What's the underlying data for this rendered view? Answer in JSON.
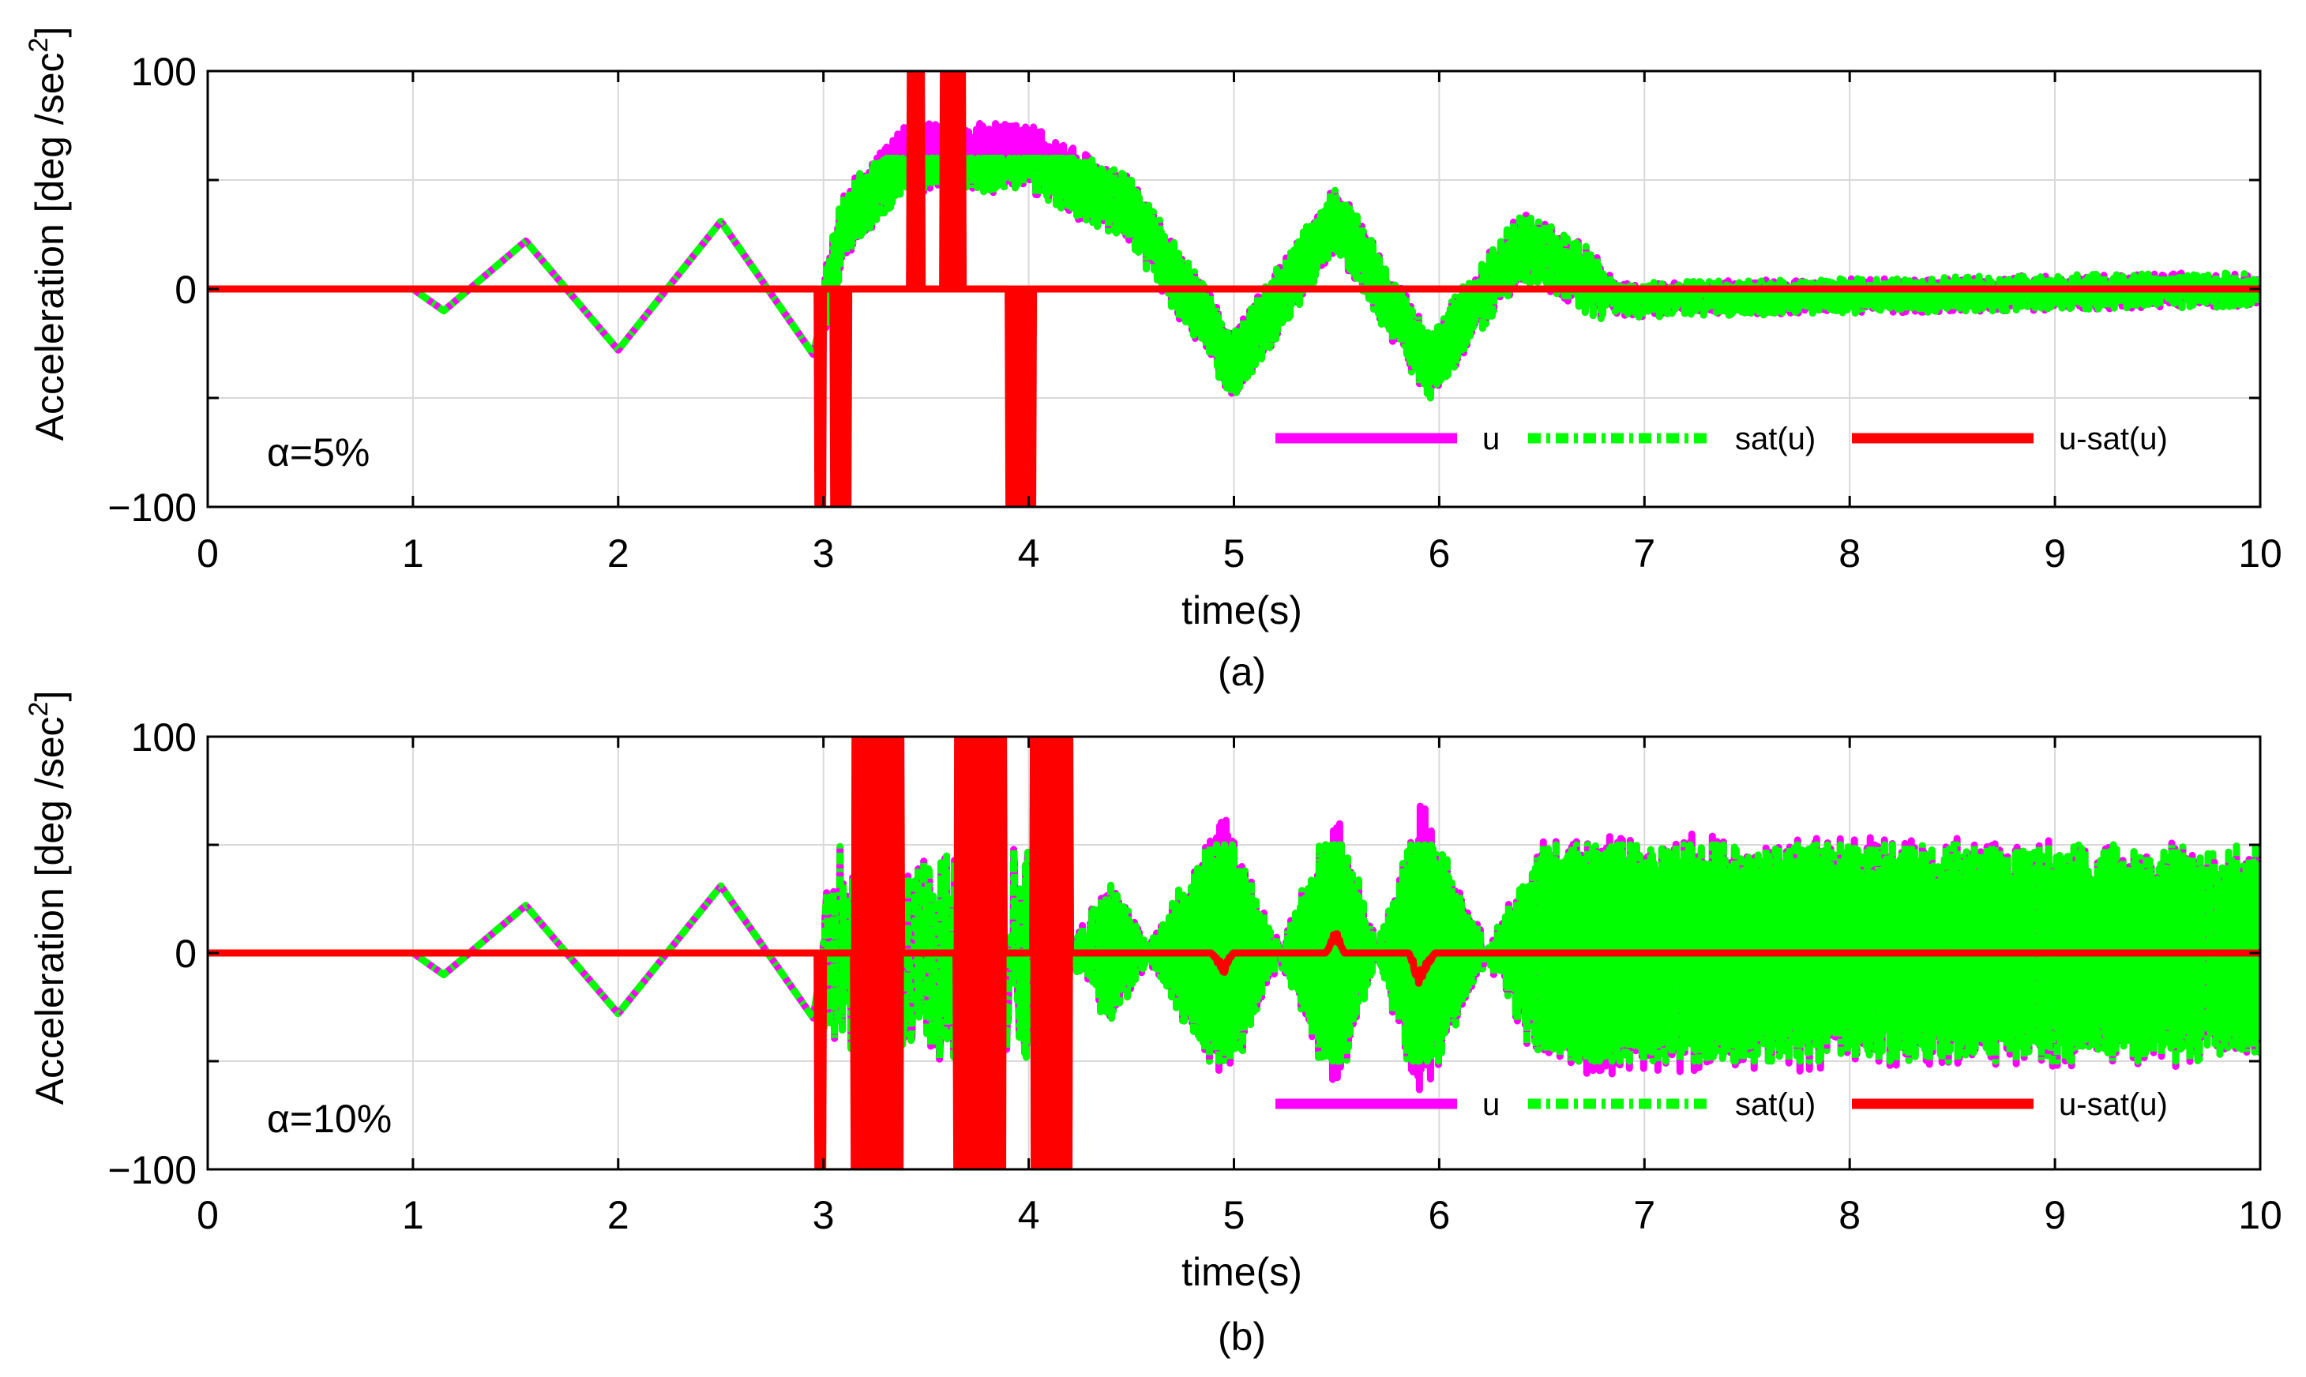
{
  "chart_data": [
    {
      "type": "line",
      "panel_caption": "(a)",
      "annotation": "α=5%",
      "xlabel": "time(s)",
      "ylabel_main": "Acceleration [deg /sec",
      "ylabel_sup": "2",
      "ylabel_close": "]",
      "xlim": [
        0,
        10
      ],
      "ylim": [
        -100,
        100
      ],
      "grid": true,
      "legend_position": "lower-right",
      "x_ticks": [
        0,
        1,
        2,
        3,
        4,
        5,
        6,
        7,
        8,
        9,
        10
      ],
      "x_tick_labels": [
        "0",
        "1",
        "2",
        "3",
        "4",
        "5",
        "6",
        "7",
        "8",
        "9",
        "10"
      ],
      "y_ticks": [
        -100,
        -50,
        0,
        50,
        100
      ],
      "y_tick_labels": [
        "−100",
        "",
        "0",
        "",
        "100"
      ],
      "sat_level": 60,
      "series": [
        {
          "name": "u",
          "color": "#ff00ff",
          "style": "solid"
        },
        {
          "name": "sat(u)",
          "color": "#00ff00",
          "style": "dashdot"
        },
        {
          "name": "u-sat(u)",
          "color": "#ff0000",
          "style": "solid"
        }
      ],
      "envelope_points": [
        {
          "t": 0.0,
          "amp": 0
        },
        {
          "t": 1.0,
          "amp": 0
        },
        {
          "t": 1.15,
          "amp": -10
        },
        {
          "t": 1.55,
          "amp": 22
        },
        {
          "t": 2.0,
          "amp": -28
        },
        {
          "t": 2.5,
          "amp": 31
        },
        {
          "t": 2.95,
          "amp": -30
        },
        {
          "t": 3.1,
          "amp": 30
        },
        {
          "t": 3.4,
          "amp": 60
        },
        {
          "t": 3.6,
          "amp": 60
        },
        {
          "t": 4.0,
          "amp": 60
        },
        {
          "t": 4.5,
          "amp": 35
        },
        {
          "t": 5.0,
          "amp": -35
        },
        {
          "t": 5.5,
          "amp": 33
        },
        {
          "t": 5.95,
          "amp": -35
        },
        {
          "t": 6.4,
          "amp": 20
        },
        {
          "t": 6.9,
          "amp": -5
        },
        {
          "t": 10.0,
          "amp": 0
        }
      ],
      "excess_bursts": [
        {
          "t0": 2.97,
          "t1": 3.0,
          "low": -100,
          "high": 0
        },
        {
          "t0": 3.05,
          "t1": 3.12,
          "low": -100,
          "high": 0
        },
        {
          "t0": 3.42,
          "t1": 3.48,
          "low": 0,
          "high": 100
        },
        {
          "t0": 3.58,
          "t1": 3.68,
          "low": 0,
          "high": 100
        },
        {
          "t0": 3.9,
          "t1": 4.02,
          "low": -100,
          "high": 0
        }
      ]
    },
    {
      "type": "line",
      "panel_caption": "(b)",
      "annotation": "α=10%",
      "xlabel": "time(s)",
      "ylabel_main": "Acceleration [deg /sec",
      "ylabel_sup": "2",
      "ylabel_close": "]",
      "xlim": [
        0,
        10
      ],
      "ylim": [
        -100,
        100
      ],
      "grid": true,
      "legend_position": "lower-right",
      "x_ticks": [
        0,
        1,
        2,
        3,
        4,
        5,
        6,
        7,
        8,
        9,
        10
      ],
      "x_tick_labels": [
        "0",
        "1",
        "2",
        "3",
        "4",
        "5",
        "6",
        "7",
        "8",
        "9",
        "10"
      ],
      "y_ticks": [
        -100,
        -50,
        0,
        50,
        100
      ],
      "y_tick_labels": [
        "−100",
        "",
        "0",
        "",
        "100"
      ],
      "sat_level": 50,
      "series": [
        {
          "name": "u",
          "color": "#ff00ff",
          "style": "solid"
        },
        {
          "name": "sat(u)",
          "color": "#00ff00",
          "style": "dashdot"
        },
        {
          "name": "u-sat(u)",
          "color": "#ff0000",
          "style": "solid"
        }
      ],
      "envelope_points": [
        {
          "t": 0.0,
          "amp": 0
        },
        {
          "t": 1.0,
          "amp": 0
        },
        {
          "t": 1.15,
          "amp": -10
        },
        {
          "t": 1.55,
          "amp": 22
        },
        {
          "t": 2.0,
          "amp": -28
        },
        {
          "t": 2.5,
          "amp": 31
        },
        {
          "t": 2.95,
          "amp": -30
        },
        {
          "t": 3.0,
          "amp": 0
        },
        {
          "t": 4.2,
          "amp": 0
        },
        {
          "t": 4.4,
          "amp": 30
        },
        {
          "t": 4.95,
          "amp": -60
        },
        {
          "t": 5.5,
          "amp": 62
        },
        {
          "t": 5.9,
          "amp": -65
        },
        {
          "t": 6.5,
          "amp": 50
        },
        {
          "t": 10.0,
          "amp": 45
        }
      ],
      "excess_bursts": [
        {
          "t0": 2.97,
          "t1": 3.0,
          "low": -100,
          "high": 0
        },
        {
          "t0": 3.15,
          "t1": 3.38,
          "low": -100,
          "high": 100
        },
        {
          "t0": 3.65,
          "t1": 3.88,
          "low": -100,
          "high": 100
        },
        {
          "t0": 4.02,
          "t1": 4.2,
          "low": -100,
          "high": 100
        }
      ]
    }
  ]
}
